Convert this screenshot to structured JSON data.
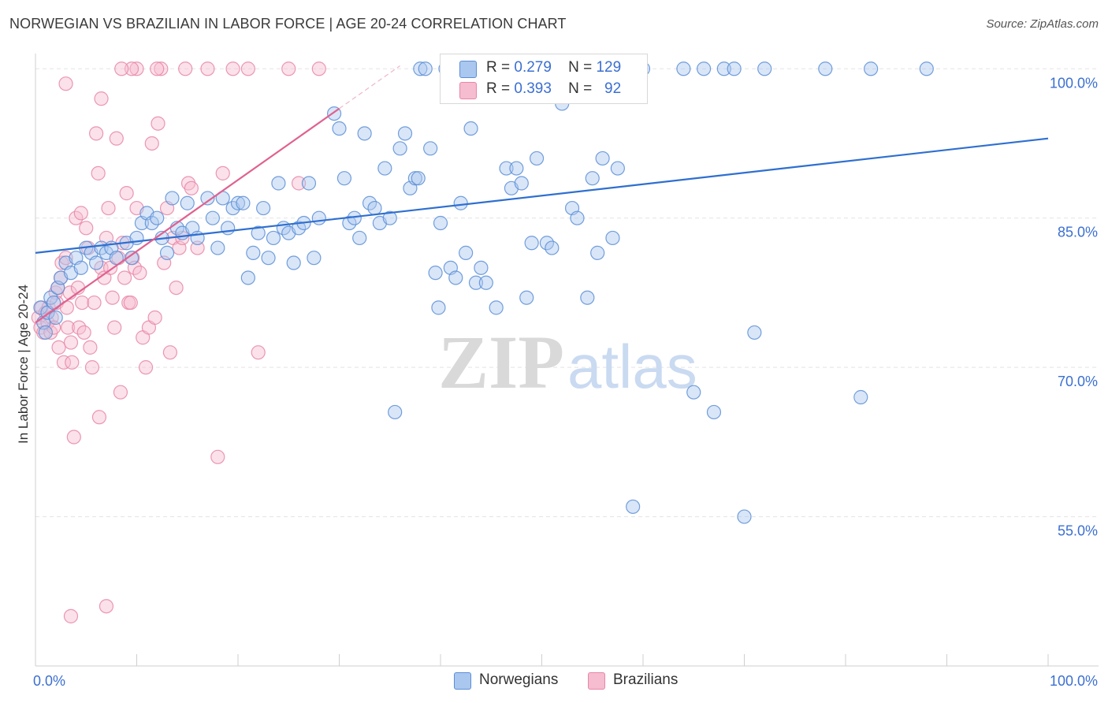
{
  "title": "NORWEGIAN VS BRAZILIAN IN LABOR FORCE | AGE 20-24 CORRELATION CHART",
  "source": "Source: ZipAtlas.com",
  "watermark": {
    "zip": "ZIP",
    "atlas": "atlas"
  },
  "colors": {
    "blue_fill": "#aac7ef",
    "blue_stroke": "#5b8ed6",
    "blue_line": "#2e6fd0",
    "pink_fill": "#f6bcd0",
    "pink_stroke": "#e886a6",
    "pink_line": "#e0618f",
    "axis_label": "#3b6fd1",
    "grid": "#e3e3e3"
  },
  "legend": {
    "rows": [
      {
        "r_label": "R =",
        "r_value": "0.279",
        "n_label": "N =",
        "n_value": "129"
      },
      {
        "r_label": "R =",
        "r_value": "0.393",
        "n_label": "N =",
        "n_value": "92"
      }
    ]
  },
  "bottom_legend": [
    "Norwegians",
    "Brazilians"
  ],
  "chart_data": {
    "type": "scatter",
    "title": "NORWEGIAN VS BRAZILIAN IN LABOR FORCE | AGE 20-24 CORRELATION CHART",
    "xlabel": "",
    "ylabel": "In Labor Force | Age 20-24",
    "xlim": [
      0,
      100
    ],
    "ylim": [
      40,
      102
    ],
    "x_tick_labels": [
      "0.0%",
      "100.0%"
    ],
    "y_ticks": [
      55,
      70,
      85,
      100
    ],
    "y_tick_labels": [
      "55.0%",
      "70.0%",
      "85.0%",
      "100.0%"
    ],
    "grid": "horizontal dashed",
    "legend_position": "top-center",
    "series": [
      {
        "name": "Norwegians",
        "r": 0.279,
        "n": 129,
        "trend": {
          "x": [
            0,
            100
          ],
          "y": [
            81.5,
            93.0
          ]
        },
        "points": [
          [
            0.5,
            76
          ],
          [
            0.8,
            74.5
          ],
          [
            1.0,
            73.5
          ],
          [
            1.2,
            75.5
          ],
          [
            1.5,
            77
          ],
          [
            1.8,
            76.5
          ],
          [
            2.0,
            75
          ],
          [
            2.2,
            78
          ],
          [
            2.5,
            79
          ],
          [
            3.0,
            80.5
          ],
          [
            3.5,
            79.5
          ],
          [
            4.0,
            81
          ],
          [
            4.5,
            80
          ],
          [
            5.0,
            82
          ],
          [
            5.5,
            81.5
          ],
          [
            6.0,
            80.5
          ],
          [
            6.5,
            82
          ],
          [
            7.0,
            81.5
          ],
          [
            7.5,
            82
          ],
          [
            8.0,
            81
          ],
          [
            9.0,
            82.5
          ],
          [
            9.5,
            81
          ],
          [
            10.0,
            83
          ],
          [
            10.5,
            84.5
          ],
          [
            11.0,
            85.5
          ],
          [
            11.5,
            84.5
          ],
          [
            12.0,
            85
          ],
          [
            12.5,
            83
          ],
          [
            13.0,
            81.5
          ],
          [
            13.5,
            87
          ],
          [
            14.0,
            84
          ],
          [
            14.5,
            83.5
          ],
          [
            15.0,
            86.5
          ],
          [
            15.5,
            84
          ],
          [
            16.0,
            83
          ],
          [
            17.0,
            87
          ],
          [
            17.5,
            85
          ],
          [
            18.0,
            82
          ],
          [
            18.5,
            87
          ],
          [
            19.0,
            84
          ],
          [
            19.5,
            86
          ],
          [
            20.0,
            86.5
          ],
          [
            20.5,
            86.5
          ],
          [
            21.0,
            79
          ],
          [
            21.5,
            81.5
          ],
          [
            22.0,
            83.5
          ],
          [
            22.5,
            86
          ],
          [
            23.0,
            81
          ],
          [
            23.5,
            83
          ],
          [
            24.0,
            88.5
          ],
          [
            24.5,
            84
          ],
          [
            25.0,
            83.5
          ],
          [
            25.5,
            80.5
          ],
          [
            26.0,
            84
          ],
          [
            26.5,
            84.5
          ],
          [
            27.0,
            88.5
          ],
          [
            27.5,
            81
          ],
          [
            28.0,
            85
          ],
          [
            29.5,
            95.5
          ],
          [
            30.0,
            94
          ],
          [
            30.5,
            89
          ],
          [
            31.0,
            84.5
          ],
          [
            31.5,
            85
          ],
          [
            32.0,
            83
          ],
          [
            32.5,
            93.5
          ],
          [
            33.0,
            86.5
          ],
          [
            33.5,
            86
          ],
          [
            34.0,
            84.5
          ],
          [
            34.5,
            90
          ],
          [
            35.0,
            85
          ],
          [
            35.5,
            65.5
          ],
          [
            36.0,
            92
          ],
          [
            36.5,
            93.5
          ],
          [
            37.0,
            88
          ],
          [
            37.5,
            89
          ],
          [
            37.8,
            89
          ],
          [
            38.0,
            100
          ],
          [
            38.5,
            100
          ],
          [
            39.0,
            92
          ],
          [
            39.5,
            79.5
          ],
          [
            39.8,
            76
          ],
          [
            40.0,
            84.5
          ],
          [
            40.5,
            100
          ],
          [
            41.0,
            80
          ],
          [
            41.5,
            79
          ],
          [
            42.0,
            86.5
          ],
          [
            42.5,
            81.5
          ],
          [
            43.0,
            94
          ],
          [
            43.5,
            78.5
          ],
          [
            44.0,
            80
          ],
          [
            44.5,
            78.5
          ],
          [
            45.0,
            100
          ],
          [
            45.5,
            76
          ],
          [
            46.5,
            90
          ],
          [
            47.0,
            88
          ],
          [
            47.5,
            90
          ],
          [
            48.0,
            88.5
          ],
          [
            48.5,
            77
          ],
          [
            49.0,
            82.5
          ],
          [
            49.5,
            91
          ],
          [
            50.0,
            100
          ],
          [
            50.5,
            82.5
          ],
          [
            51.0,
            82
          ],
          [
            51.5,
            100
          ],
          [
            52.0,
            96.5
          ],
          [
            52.5,
            100
          ],
          [
            53.0,
            86
          ],
          [
            53.5,
            85
          ],
          [
            54.0,
            100
          ],
          [
            54.5,
            77
          ],
          [
            55.0,
            89
          ],
          [
            55.5,
            81.5
          ],
          [
            56.0,
            91
          ],
          [
            56.5,
            100
          ],
          [
            57.0,
            83
          ],
          [
            57.5,
            90
          ],
          [
            58.0,
            100
          ],
          [
            59.0,
            56
          ],
          [
            60.0,
            100
          ],
          [
            64.0,
            100
          ],
          [
            65.0,
            67.5
          ],
          [
            66.0,
            100
          ],
          [
            67.0,
            65.5
          ],
          [
            68.0,
            100
          ],
          [
            69.0,
            100
          ],
          [
            70.0,
            55
          ],
          [
            71.0,
            73.5
          ],
          [
            72.0,
            100
          ],
          [
            78.0,
            100
          ],
          [
            81.5,
            67
          ],
          [
            82.5,
            100
          ],
          [
            88.0,
            100
          ]
        ]
      },
      {
        "name": "Brazilians",
        "r": 0.393,
        "n": 92,
        "trend": {
          "x": [
            0,
            30
          ],
          "y": [
            74.5,
            96.0
          ]
        },
        "points": [
          [
            0.3,
            75
          ],
          [
            0.5,
            74
          ],
          [
            0.6,
            76
          ],
          [
            0.8,
            73.5
          ],
          [
            1.0,
            75.5
          ],
          [
            1.2,
            74.5
          ],
          [
            1.3,
            76
          ],
          [
            1.5,
            73.5
          ],
          [
            1.6,
            75
          ],
          [
            1.8,
            74
          ],
          [
            2.0,
            77.5
          ],
          [
            2.1,
            76.5
          ],
          [
            2.2,
            78
          ],
          [
            2.3,
            72
          ],
          [
            2.5,
            79
          ],
          [
            2.6,
            80.5
          ],
          [
            2.8,
            70.5
          ],
          [
            3.0,
            81
          ],
          [
            3.1,
            76
          ],
          [
            3.2,
            74
          ],
          [
            3.4,
            77.5
          ],
          [
            3.5,
            72.5
          ],
          [
            3.6,
            70.5
          ],
          [
            3.8,
            63
          ],
          [
            4.0,
            85
          ],
          [
            4.2,
            78
          ],
          [
            4.3,
            74
          ],
          [
            4.5,
            85.5
          ],
          [
            4.6,
            76.5
          ],
          [
            4.8,
            73.5
          ],
          [
            5.0,
            84
          ],
          [
            5.2,
            82
          ],
          [
            5.4,
            72
          ],
          [
            5.6,
            70
          ],
          [
            5.8,
            76.5
          ],
          [
            6.0,
            93.5
          ],
          [
            6.2,
            89.5
          ],
          [
            6.3,
            65
          ],
          [
            6.5,
            80
          ],
          [
            6.8,
            79
          ],
          [
            7.0,
            83
          ],
          [
            7.2,
            86
          ],
          [
            7.4,
            80
          ],
          [
            7.6,
            77
          ],
          [
            7.8,
            74
          ],
          [
            8.0,
            93
          ],
          [
            8.2,
            81
          ],
          [
            8.4,
            67.5
          ],
          [
            8.6,
            82.5
          ],
          [
            8.8,
            79
          ],
          [
            9.0,
            87.5
          ],
          [
            9.2,
            76.5
          ],
          [
            9.4,
            76.5
          ],
          [
            9.6,
            81
          ],
          [
            9.8,
            80
          ],
          [
            10.0,
            86
          ],
          [
            10.3,
            79.5
          ],
          [
            10.6,
            73
          ],
          [
            10.9,
            70
          ],
          [
            11.2,
            74
          ],
          [
            11.5,
            92.5
          ],
          [
            11.8,
            75
          ],
          [
            12.1,
            94.5
          ],
          [
            12.4,
            100
          ],
          [
            12.7,
            80.5
          ],
          [
            13.0,
            86
          ],
          [
            13.3,
            71.5
          ],
          [
            13.6,
            83
          ],
          [
            13.9,
            78
          ],
          [
            14.2,
            82
          ],
          [
            14.5,
            83
          ],
          [
            14.8,
            100
          ],
          [
            15.1,
            88.5
          ],
          [
            15.4,
            88
          ],
          [
            16.0,
            82
          ],
          [
            17.0,
            100
          ],
          [
            18.0,
            61
          ],
          [
            18.5,
            89.5
          ],
          [
            19.5,
            100
          ],
          [
            21.0,
            100
          ],
          [
            22.0,
            71.5
          ],
          [
            25.0,
            100
          ],
          [
            26.0,
            88.5
          ],
          [
            28.0,
            100
          ],
          [
            10.0,
            100
          ],
          [
            12.0,
            100
          ],
          [
            3.5,
            45
          ],
          [
            7.0,
            46
          ],
          [
            9.5,
            100
          ],
          [
            8.5,
            100
          ],
          [
            6.5,
            97
          ],
          [
            3.0,
            98.5
          ]
        ]
      }
    ]
  }
}
